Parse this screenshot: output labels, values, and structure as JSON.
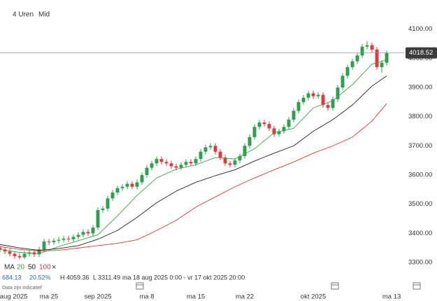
{
  "chart_data": {
    "type": "candlestick",
    "interval": "4 Uren",
    "price_mode": "Mid",
    "legend_title": "MA",
    "change": 684.13,
    "change_pct": {
      "value": 20.52,
      "label": "20.52%"
    },
    "high_text": "H 4059.36",
    "low_text": "L 3311.49",
    "range_text": "ma 18 aug 2025 0:00 - vr 17 okt 2025 20:00",
    "note": "Data zijn indicatief",
    "last_price": 4018.52,
    "up_color": "#2f9e4f",
    "down_color": "#e0393e",
    "xlim": [
      0,
      44.64
    ],
    "ylim": [
      3245,
      4200
    ],
    "xticks": [
      {
        "value": 1.4,
        "label": "aug 2025"
      },
      {
        "value": 5,
        "label": "ma 25"
      },
      {
        "value": 10,
        "label": "sep 2025"
      },
      {
        "value": 15,
        "label": "ma 8"
      },
      {
        "value": 20,
        "label": "ma 15"
      },
      {
        "value": 25,
        "label": "ma 22"
      },
      {
        "value": 32,
        "label": "okt 2025"
      },
      {
        "value": 40,
        "label": "ma 13"
      }
    ],
    "yticks": [
      {
        "value": 3300,
        "label": "3300.00"
      },
      {
        "value": 3400,
        "label": "3400.00"
      },
      {
        "value": 3500,
        "label": "3500.00"
      },
      {
        "value": 3600,
        "label": "3600.00"
      },
      {
        "value": 3700,
        "label": "3700.00"
      },
      {
        "value": 3800,
        "label": "3800.00"
      },
      {
        "value": 3900,
        "label": "3900.00"
      },
      {
        "value": 4000,
        "label": "4000.00"
      },
      {
        "value": 4100,
        "label": "4100.00"
      }
    ],
    "x": [
      0,
      0.5,
      1,
      1.5,
      2,
      2.5,
      3,
      3.5,
      4,
      4.5,
      5,
      5.5,
      6,
      6.5,
      7,
      7.5,
      8,
      8.5,
      9,
      9.5,
      10,
      10.5,
      11,
      11.5,
      12,
      12.5,
      13,
      13.5,
      14,
      14.5,
      15,
      15.5,
      16,
      16.5,
      17,
      17.5,
      18,
      18.5,
      19,
      19.5,
      20,
      20.5,
      21,
      21.5,
      22,
      22.5,
      23,
      23.5,
      24,
      24.5,
      25,
      25.5,
      26,
      26.5,
      27,
      27.5,
      28,
      28.5,
      29,
      29.5,
      30,
      30.5,
      31,
      31.5,
      32,
      32.5,
      33,
      33.5,
      34,
      34.5,
      35,
      35.5,
      36,
      36.5,
      37,
      37.5,
      38,
      38.5,
      39,
      39.5
    ],
    "open": [
      3350,
      3345,
      3338,
      3330,
      3322,
      3318,
      3330,
      3335,
      3328,
      3345,
      3372,
      3370,
      3375,
      3378,
      3382,
      3380,
      3388,
      3395,
      3405,
      3400,
      3420,
      3480,
      3485,
      3520,
      3540,
      3555,
      3560,
      3570,
      3560,
      3575,
      3600,
      3625,
      3640,
      3655,
      3645,
      3640,
      3630,
      3625,
      3635,
      3645,
      3640,
      3655,
      3680,
      3695,
      3700,
      3680,
      3660,
      3640,
      3635,
      3650,
      3665,
      3700,
      3730,
      3765,
      3780,
      3775,
      3760,
      3740,
      3750,
      3765,
      3790,
      3820,
      3850,
      3865,
      3880,
      3870,
      3875,
      3840,
      3830,
      3860,
      3900,
      3940,
      3970,
      3990,
      4010,
      4040,
      4045,
      4030,
      3970,
      3985
    ],
    "high": [
      3359,
      3354,
      3347,
      3339,
      3331,
      3339,
      3344,
      3344,
      3354,
      3381,
      3381,
      3384,
      3387,
      3391,
      3391,
      3397,
      3404,
      3414,
      3414,
      3429,
      3489,
      3494,
      3529,
      3549,
      3564,
      3569,
      3579,
      3579,
      3584,
      3609,
      3634,
      3649,
      3664,
      3664,
      3654,
      3649,
      3639,
      3644,
      3654,
      3654,
      3664,
      3689,
      3704,
      3709,
      3709,
      3689,
      3669,
      3649,
      3659,
      3674,
      3709,
      3739,
      3774,
      3789,
      3789,
      3784,
      3769,
      3759,
      3774,
      3799,
      3829,
      3859,
      3874,
      3889,
      3889,
      3884,
      3884,
      3849,
      3869,
      3909,
      3949,
      3979,
      3999,
      4019,
      4049,
      4059.36,
      4054,
      4039,
      3994,
      4027
    ],
    "low": [
      3336,
      3329,
      3321,
      3313,
      3311.49,
      3312,
      3321,
      3319,
      3319,
      3336,
      3361,
      3361,
      3366,
      3369,
      3371,
      3371,
      3379,
      3386,
      3391,
      3391,
      3411,
      3471,
      3476,
      3511,
      3531,
      3546,
      3551,
      3551,
      3551,
      3566,
      3591,
      3616,
      3631,
      3636,
      3631,
      3621,
      3616,
      3616,
      3626,
      3631,
      3631,
      3646,
      3671,
      3686,
      3671,
      3651,
      3631,
      3626,
      3626,
      3641,
      3656,
      3691,
      3721,
      3756,
      3766,
      3751,
      3731,
      3731,
      3741,
      3756,
      3781,
      3811,
      3841,
      3856,
      3861,
      3861,
      3831,
      3821,
      3821,
      3851,
      3891,
      3931,
      3961,
      3981,
      4001,
      4031,
      4021,
      3961,
      3951,
      3976
    ],
    "close": [
      3345,
      3338,
      3330,
      3322,
      3318,
      3330,
      3335,
      3328,
      3345,
      3372,
      3370,
      3375,
      3378,
      3382,
      3380,
      3388,
      3395,
      3405,
      3400,
      3420,
      3480,
      3485,
      3520,
      3540,
      3555,
      3560,
      3570,
      3560,
      3575,
      3600,
      3625,
      3640,
      3655,
      3645,
      3640,
      3630,
      3625,
      3635,
      3645,
      3640,
      3655,
      3680,
      3695,
      3700,
      3680,
      3660,
      3640,
      3635,
      3650,
      3665,
      3700,
      3730,
      3765,
      3780,
      3775,
      3760,
      3740,
      3750,
      3765,
      3790,
      3820,
      3850,
      3865,
      3880,
      3870,
      3875,
      3840,
      3830,
      3860,
      3900,
      3940,
      3970,
      3990,
      4010,
      4040,
      4045,
      4030,
      3970,
      3985,
      4018.52
    ],
    "series": [
      {
        "name": "20",
        "color": "#3aa545",
        "x": [
          0,
          2,
          4,
          6,
          8,
          10,
          12,
          14,
          16,
          18,
          20,
          22,
          24,
          26,
          28,
          30,
          32,
          34,
          36,
          38,
          39.5
        ],
        "values": [
          3345,
          3335,
          3330,
          3355,
          3375,
          3395,
          3460,
          3530,
          3590,
          3620,
          3635,
          3660,
          3655,
          3690,
          3745,
          3760,
          3830,
          3855,
          3910,
          3980,
          3995
        ]
      },
      {
        "name": "50",
        "color": "#222222",
        "x": [
          0,
          2,
          4,
          6,
          8,
          10,
          12,
          14,
          16,
          18,
          20,
          22,
          24,
          26,
          28,
          30,
          32,
          34,
          36,
          38,
          39.5
        ],
        "values": [
          3362,
          3350,
          3342,
          3348,
          3358,
          3380,
          3410,
          3455,
          3505,
          3545,
          3575,
          3598,
          3618,
          3648,
          3675,
          3700,
          3750,
          3790,
          3840,
          3905,
          3940
        ]
      },
      {
        "name": "100",
        "color": "#e03a30",
        "x": [
          0,
          2,
          4,
          6,
          8,
          10,
          12,
          14,
          16,
          18,
          20,
          22,
          24,
          26,
          28,
          30,
          32,
          34,
          36,
          38,
          39.5
        ],
        "values": [
          3355,
          3345,
          3340,
          3342,
          3350,
          3358,
          3366,
          3378,
          3410,
          3445,
          3490,
          3525,
          3560,
          3590,
          3618,
          3645,
          3675,
          3700,
          3730,
          3785,
          3845
        ]
      }
    ]
  }
}
